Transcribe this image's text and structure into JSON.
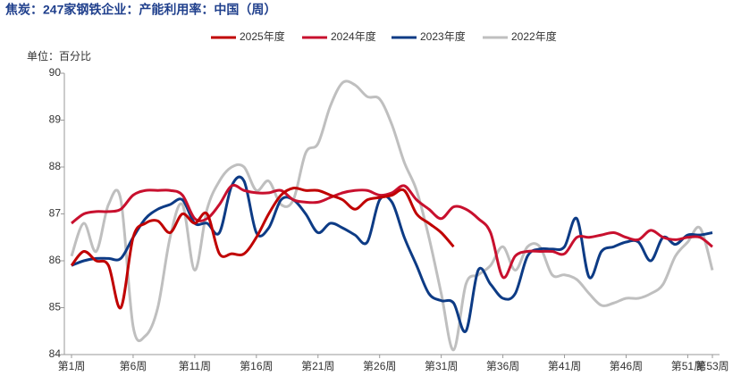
{
  "chart_data": {
    "type": "line",
    "title": "焦炭：247家钢铁企业：产能利用率：中国（周）",
    "y_label": "单位：百分比",
    "categories": [
      "第1周",
      null,
      null,
      null,
      null,
      "第6周",
      null,
      null,
      null,
      null,
      "第11周",
      null,
      null,
      null,
      null,
      "第16周",
      null,
      null,
      null,
      null,
      "第21周",
      null,
      null,
      null,
      null,
      "第26周",
      null,
      null,
      null,
      null,
      "第31周",
      null,
      null,
      null,
      null,
      "第36周",
      null,
      null,
      null,
      null,
      "第41周",
      null,
      null,
      null,
      null,
      "第46周",
      null,
      null,
      null,
      null,
      "第51周",
      null,
      "第53周"
    ],
    "ylim": [
      84,
      90
    ],
    "yticks": [
      84,
      85,
      86,
      87,
      88,
      89,
      90
    ],
    "grid": false,
    "legend": "top",
    "series": [
      {
        "name": "2025年度",
        "color": "#c00000",
        "values": [
          85.9,
          86.2,
          86.0,
          85.9,
          85.0,
          86.5,
          86.8,
          86.85,
          86.6,
          87.0,
          86.8,
          87.0,
          86.15,
          86.15,
          86.15,
          86.5,
          87.0,
          87.4,
          87.55,
          87.5,
          87.5,
          87.4,
          87.3,
          87.1,
          87.3,
          87.35,
          87.4,
          87.5,
          87.0,
          86.8,
          86.6,
          86.3,
          null,
          null,
          null,
          null,
          null,
          null,
          null,
          null,
          null,
          null,
          null,
          null,
          null,
          null,
          null,
          null,
          null,
          null,
          null,
          null,
          null
        ]
      },
      {
        "name": "2024年度",
        "color": "#c8102e",
        "values": [
          86.8,
          87.0,
          87.05,
          87.05,
          87.1,
          87.4,
          87.5,
          87.5,
          87.5,
          87.4,
          86.9,
          86.9,
          87.2,
          87.6,
          87.5,
          87.45,
          87.45,
          87.5,
          87.3,
          87.25,
          87.25,
          87.35,
          87.45,
          87.5,
          87.5,
          87.4,
          87.45,
          87.6,
          87.3,
          87.1,
          86.9,
          87.15,
          87.1,
          86.9,
          86.6,
          85.65,
          86.1,
          86.2,
          86.2,
          86.2,
          86.15,
          86.5,
          86.5,
          86.55,
          86.6,
          86.5,
          86.45,
          86.65,
          86.5,
          86.45,
          86.5,
          86.5,
          86.3
        ]
      },
      {
        "name": "2023年度",
        "color": "#0d3b85",
        "values": [
          85.9,
          86.0,
          86.05,
          86.05,
          86.05,
          86.5,
          86.9,
          87.1,
          87.2,
          87.3,
          86.8,
          86.8,
          86.6,
          87.6,
          87.7,
          86.6,
          86.7,
          87.3,
          87.3,
          87.0,
          86.6,
          86.8,
          86.7,
          86.55,
          86.4,
          87.3,
          87.25,
          86.5,
          85.9,
          85.3,
          85.15,
          85.1,
          84.5,
          85.8,
          85.5,
          85.2,
          85.3,
          86.1,
          86.25,
          86.25,
          86.3,
          86.9,
          85.65,
          86.2,
          86.3,
          86.4,
          86.4,
          86.0,
          86.5,
          86.35,
          86.55,
          86.55,
          86.6
        ]
      },
      {
        "name": "2022年度",
        "color": "#bfbfbf",
        "values": [
          86.1,
          86.8,
          86.2,
          87.2,
          87.3,
          84.6,
          84.4,
          85.0,
          86.5,
          87.2,
          85.8,
          87.1,
          87.7,
          88.0,
          88.0,
          87.5,
          87.7,
          87.2,
          87.3,
          88.3,
          88.5,
          89.3,
          89.8,
          89.75,
          89.5,
          89.45,
          88.9,
          88.1,
          87.5,
          86.5,
          85.3,
          84.1,
          85.5,
          85.7,
          85.9,
          86.3,
          85.8,
          86.3,
          86.3,
          85.7,
          85.7,
          85.6,
          85.3,
          85.05,
          85.1,
          85.2,
          85.2,
          85.3,
          85.5,
          86.1,
          86.4,
          86.7,
          85.8
        ]
      }
    ]
  }
}
